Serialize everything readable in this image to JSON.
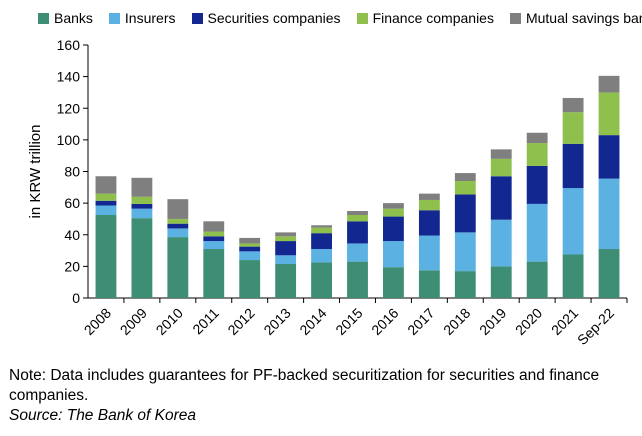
{
  "chart_data": {
    "type": "bar",
    "stacked": true,
    "title": "",
    "xlabel": "",
    "ylabel": "in KRW trillion",
    "ylim": [
      0,
      160
    ],
    "yticks": [
      0,
      20,
      40,
      60,
      80,
      100,
      120,
      140,
      160
    ],
    "grid": false,
    "legend_position": "top",
    "categories": [
      "2008",
      "2009",
      "2010",
      "2011",
      "2012",
      "2013",
      "2014",
      "2015",
      "2016",
      "2017",
      "2018",
      "2019",
      "2020",
      "2021",
      "Sep-22"
    ],
    "series": [
      {
        "name": "Banks",
        "color": "#3d8e74",
        "values": [
          52.5,
          50.5,
          38.5,
          31,
          24,
          21.5,
          22.5,
          23,
          19.5,
          17.5,
          17,
          20,
          23,
          27.5,
          31
        ]
      },
      {
        "name": "Insurers",
        "color": "#5ab1e2",
        "values": [
          6,
          6,
          5.5,
          5,
          5.5,
          5.5,
          8.5,
          11.5,
          16.5,
          22,
          24.5,
          29.5,
          36.5,
          42,
          44.5
        ]
      },
      {
        "name": "Securities companies",
        "color": "#12278f",
        "values": [
          3,
          3,
          3,
          3,
          3,
          9,
          10,
          14,
          15.5,
          16,
          24,
          27.5,
          24,
          28,
          27.5
        ]
      },
      {
        "name": "Finance companies",
        "color": "#8fc04d",
        "values": [
          4.5,
          4.5,
          3,
          3,
          2,
          3,
          3.5,
          4,
          5,
          6.5,
          8.5,
          11,
          14.5,
          20,
          27
        ]
      },
      {
        "name": "Mutual savings banks",
        "color": "#7f7f7f",
        "values": [
          11,
          12,
          12.5,
          6.5,
          3.5,
          2.5,
          1.5,
          2.5,
          3.5,
          4,
          5,
          6,
          6.5,
          9,
          10.5
        ]
      }
    ]
  },
  "footer": {
    "note": "Note: Data includes guarantees for PF-backed securitization for securities and finance companies.",
    "source": "Source: The Bank of Korea"
  }
}
